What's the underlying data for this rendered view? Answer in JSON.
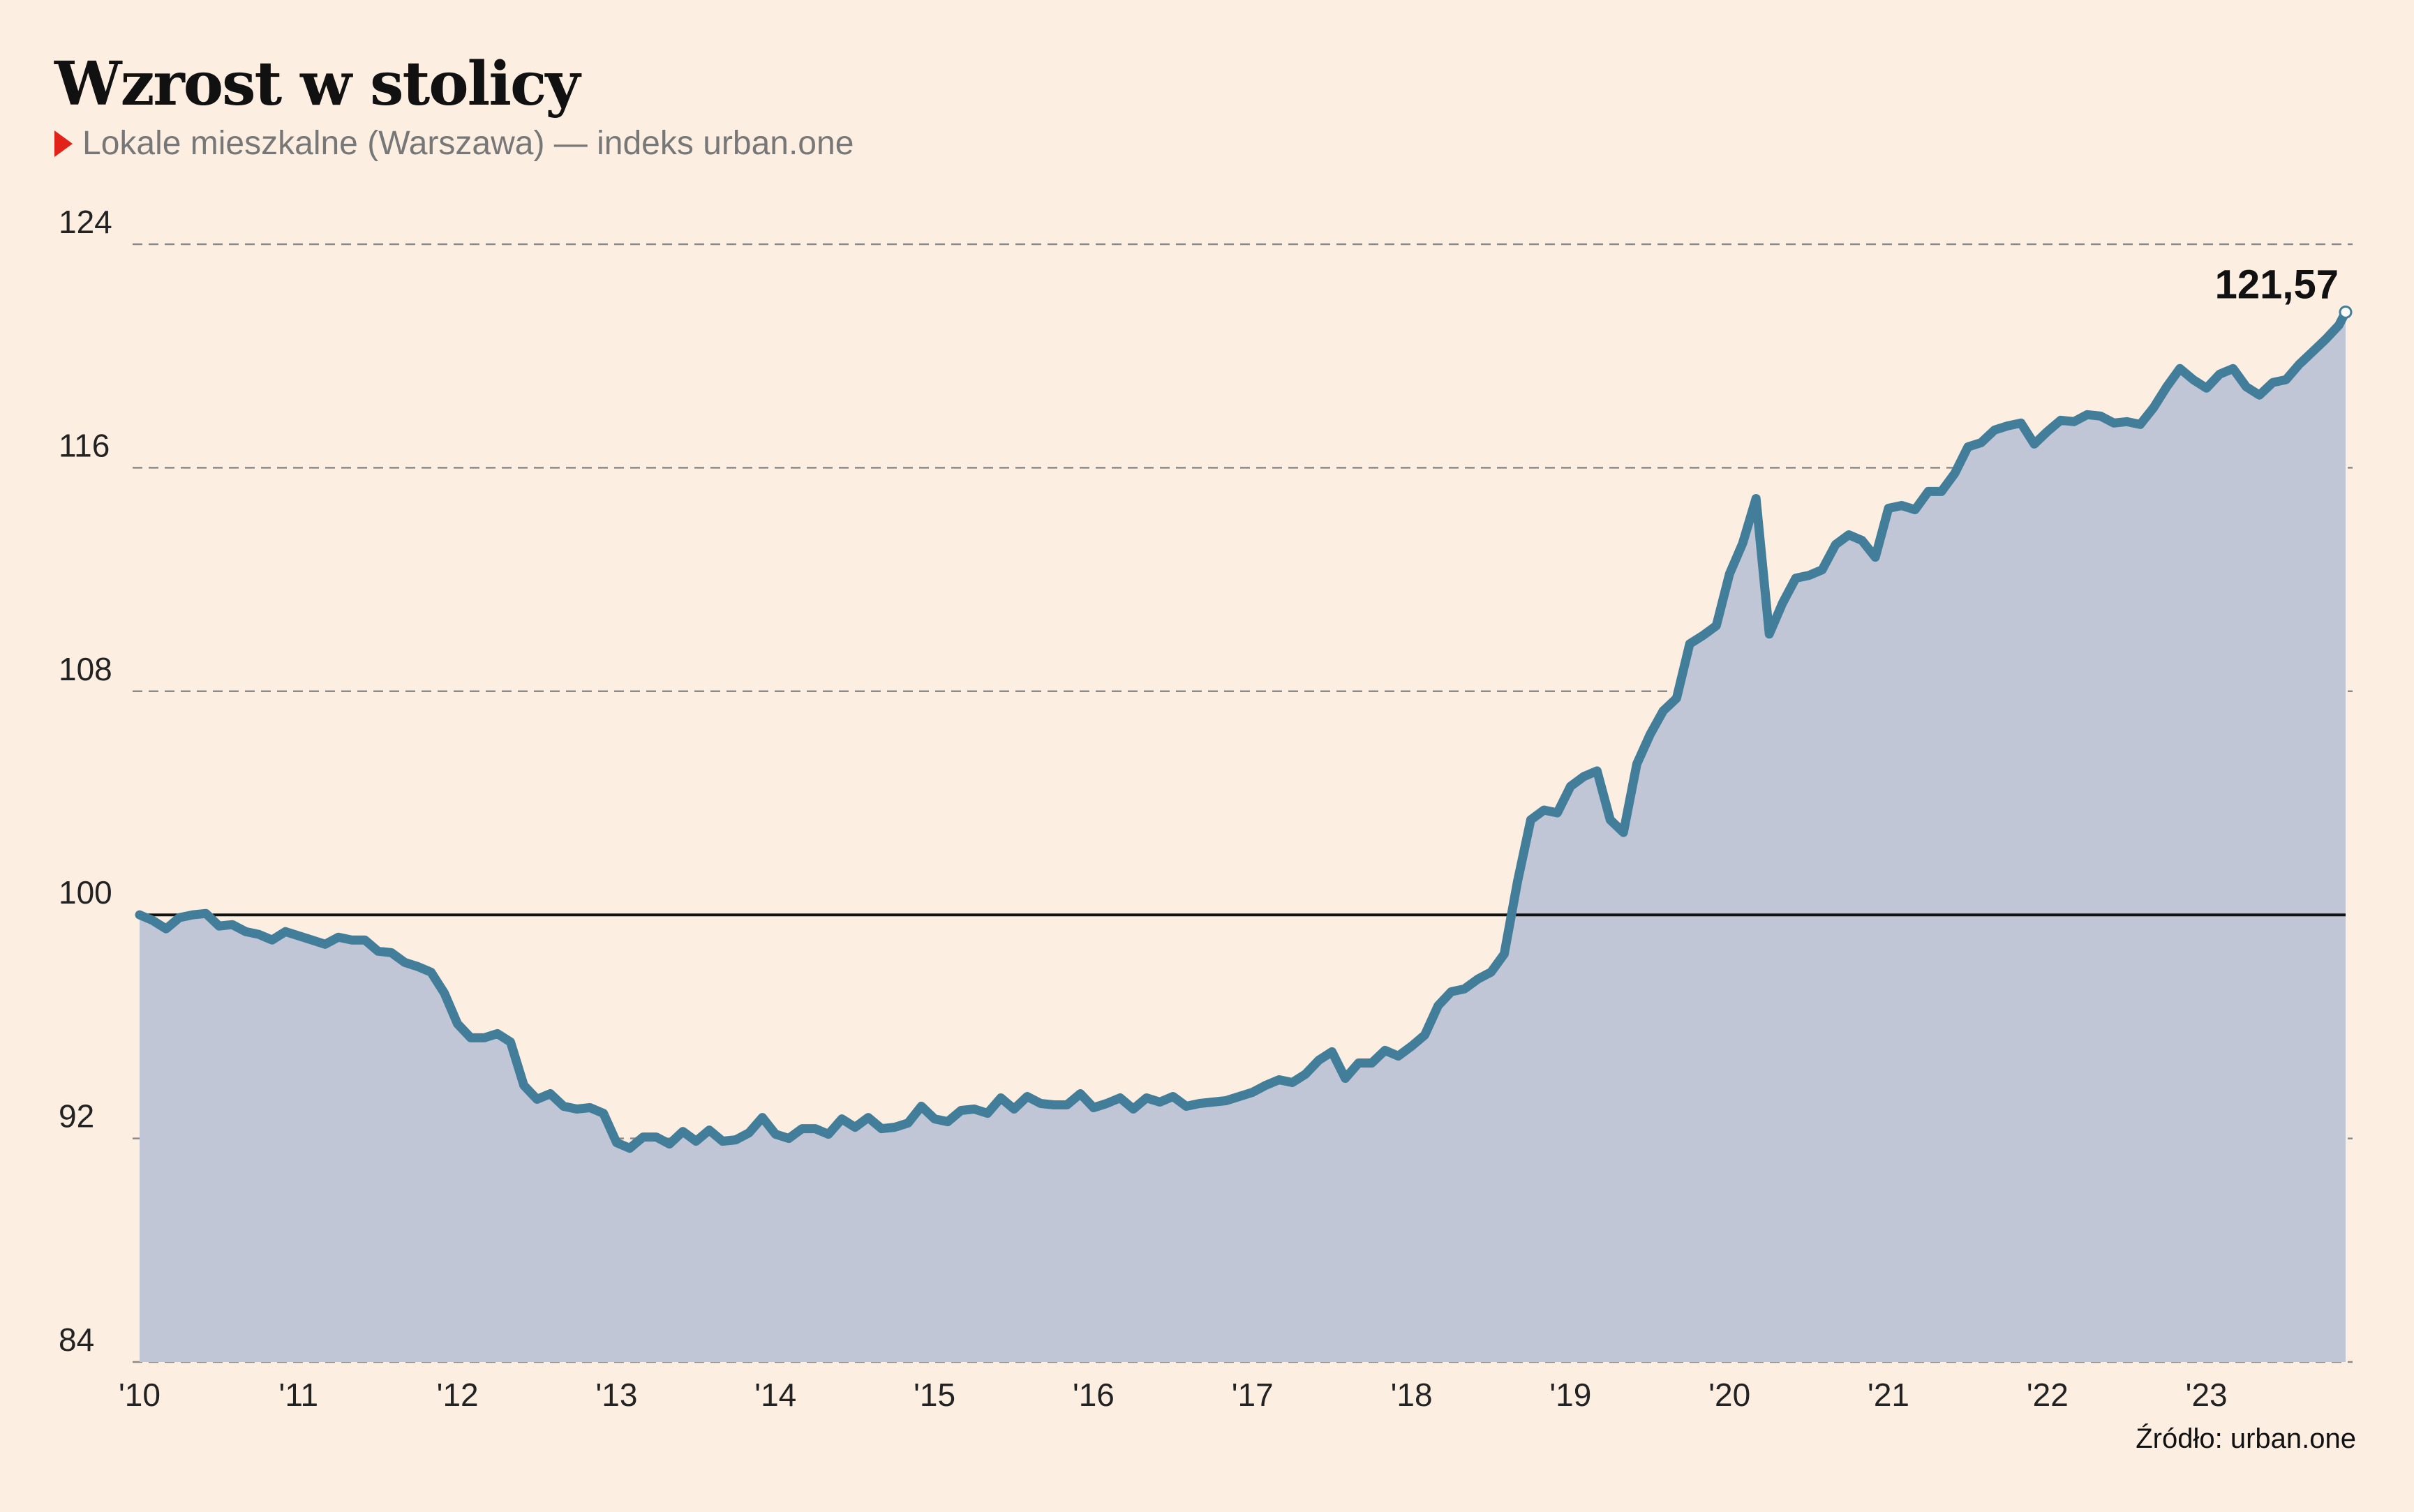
{
  "title": "Wzrost w stolicy",
  "subtitle": "Lokale mieszkalne (Warszawa) — indeks urban.one",
  "source": "Źródło: urban.one",
  "colors": {
    "background": "#fcefe2",
    "line": "#427d9a",
    "area": "#c1c6d7",
    "baseline": "#111111",
    "grid": "#8a8a8a",
    "accent": "#e2231a"
  },
  "chart_data": {
    "type": "area",
    "title": "Wzrost w stolicy",
    "subtitle": "Lokale mieszkalne (Warszawa) — indeks urban.one",
    "ylim": [
      84,
      124
    ],
    "yticks": [
      "124",
      "116",
      "108",
      "100",
      "92",
      "84"
    ],
    "ytick_values": [
      124,
      116,
      108,
      100,
      92,
      84
    ],
    "xlim": [
      2010,
      2023.875
    ],
    "xticks": [
      "'10",
      "'11",
      "'12",
      "'13",
      "'14",
      "'15",
      "'16",
      "'17",
      "'18",
      "'19",
      "'20",
      "'21",
      "'22",
      "'23"
    ],
    "xtick_values": [
      2010,
      2011,
      2012,
      2013,
      2014,
      2015,
      2016,
      2017,
      2018,
      2019,
      2020,
      2021,
      2022,
      2023
    ],
    "grid": true,
    "reference_line": 100,
    "end_label": "121,57",
    "series": [
      {
        "x": [
          2010.0,
          2010.083,
          2010.167,
          2010.25,
          2010.333,
          2010.417,
          2010.5,
          2010.583,
          2010.667,
          2010.75,
          2010.833,
          2010.917,
          2011.0,
          2011.083,
          2011.167,
          2011.25,
          2011.333,
          2011.417,
          2011.5,
          2011.583,
          2011.667,
          2011.75,
          2011.833,
          2011.917,
          2012.0,
          2012.083,
          2012.167,
          2012.25,
          2012.333,
          2012.417,
          2012.5,
          2012.583,
          2012.667,
          2012.75,
          2012.833,
          2012.917,
          2013.0,
          2013.083,
          2013.167,
          2013.25,
          2013.333,
          2013.417,
          2013.5,
          2013.583,
          2013.667,
          2013.75,
          2013.833,
          2013.917,
          2014.0,
          2014.083,
          2014.167,
          2014.25,
          2014.333,
          2014.417,
          2014.5,
          2014.583,
          2014.667,
          2014.75,
          2014.833,
          2014.917,
          2015.0,
          2015.083,
          2015.167,
          2015.25,
          2015.333,
          2015.417,
          2015.5,
          2015.583,
          2015.667,
          2015.75,
          2015.833,
          2015.917,
          2016.0,
          2016.083,
          2016.167,
          2016.25,
          2016.333,
          2016.417,
          2016.5,
          2016.583,
          2016.667,
          2016.75,
          2016.833,
          2016.917,
          2017.0,
          2017.083,
          2017.167,
          2017.25,
          2017.333,
          2017.417,
          2017.5,
          2017.583,
          2017.667,
          2017.75,
          2017.833,
          2017.917,
          2018.0,
          2018.083,
          2018.167,
          2018.25,
          2018.333,
          2018.417,
          2018.5,
          2018.583,
          2018.667,
          2018.75,
          2018.833,
          2018.917,
          2019.0,
          2019.083,
          2019.167,
          2019.25,
          2019.333,
          2019.417,
          2019.5,
          2019.583,
          2019.667,
          2019.75,
          2019.833,
          2019.917,
          2020.0,
          2020.083,
          2020.167,
          2020.25,
          2020.333,
          2020.417,
          2020.5,
          2020.583,
          2020.667,
          2020.75,
          2020.833,
          2020.917,
          2021.0,
          2021.083,
          2021.167,
          2021.25,
          2021.333,
          2021.417,
          2021.5,
          2021.583,
          2021.667,
          2021.75,
          2021.833,
          2021.917,
          2022.0,
          2022.083,
          2022.167,
          2022.25,
          2022.333,
          2022.417,
          2022.5,
          2022.583,
          2022.667,
          2022.75,
          2022.833,
          2022.917,
          2023.0,
          2023.083,
          2023.167,
          2023.25,
          2023.333,
          2023.417,
          2023.5,
          2023.583,
          2023.667,
          2023.75,
          2023.833,
          2023.875
        ],
        "values": [
          100.0,
          99.8,
          99.5,
          99.9,
          100.0,
          100.05,
          99.6,
          99.65,
          99.4,
          99.3,
          99.1,
          99.4,
          99.25,
          99.1,
          98.95,
          99.2,
          99.1,
          99.1,
          98.7,
          98.65,
          98.3,
          98.15,
          97.95,
          97.2,
          96.1,
          95.6,
          95.6,
          95.75,
          95.45,
          93.9,
          93.4,
          93.6,
          93.15,
          93.05,
          93.1,
          92.9,
          91.85,
          91.65,
          92.05,
          92.05,
          91.8,
          92.25,
          91.9,
          92.3,
          91.9,
          91.95,
          92.2,
          92.75,
          92.15,
          92.0,
          92.35,
          92.35,
          92.15,
          92.7,
          92.4,
          92.75,
          92.35,
          92.4,
          92.55,
          93.15,
          92.7,
          92.6,
          93.0,
          93.05,
          92.9,
          93.45,
          93.05,
          93.5,
          93.25,
          93.2,
          93.2,
          93.6,
          93.1,
          93.25,
          93.45,
          93.05,
          93.45,
          93.3,
          93.5,
          93.15,
          93.25,
          93.3,
          93.35,
          93.5,
          93.65,
          93.9,
          94.1,
          94.0,
          94.3,
          94.8,
          95.1,
          94.15,
          94.7,
          94.7,
          95.15,
          94.95,
          95.3,
          95.7,
          96.75,
          97.25,
          97.35,
          97.7,
          97.95,
          98.6,
          101.2,
          103.4,
          103.75,
          103.65,
          104.6,
          104.95,
          105.15,
          103.4,
          102.95,
          105.4,
          106.45,
          107.3,
          107.75,
          109.7,
          110.0,
          110.35,
          112.2,
          113.3,
          114.9,
          110.05,
          111.15,
          112.05,
          112.15,
          112.35,
          113.25,
          113.6,
          113.4,
          112.8,
          114.55,
          114.65,
          114.5,
          115.15,
          115.15,
          115.8,
          116.75,
          116.9,
          117.35,
          117.5,
          117.6,
          116.85,
          117.3,
          117.7,
          117.65,
          117.9,
          117.85,
          117.6,
          117.65,
          117.55,
          118.15,
          118.9,
          119.55,
          119.15,
          118.85,
          119.35,
          119.55,
          118.9,
          118.6,
          119.05,
          119.15,
          119.7,
          120.15,
          120.6,
          121.1,
          121.57
        ]
      }
    ]
  }
}
